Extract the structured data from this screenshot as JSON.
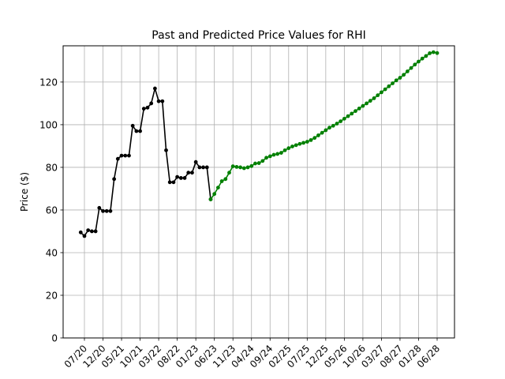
{
  "chart_data": {
    "type": "line",
    "title": "Past and Predicted Price Values for RHI",
    "xlabel": "",
    "ylabel": "Price ($)",
    "ylim": [
      0,
      137
    ],
    "yticks": [
      0,
      20,
      40,
      60,
      80,
      100,
      120
    ],
    "xticks": [
      "07/20",
      "12/20",
      "05/21",
      "10/21",
      "03/22",
      "08/22",
      "01/23",
      "06/23",
      "11/23",
      "04/24",
      "09/24",
      "02/25",
      "07/25",
      "12/25",
      "05/26",
      "10/26",
      "03/27",
      "08/27",
      "01/28",
      "06/28"
    ],
    "grid": true,
    "series": [
      {
        "color": "#000000",
        "x": [
          "2020-06",
          "2020-07",
          "2020-08",
          "2020-09",
          "2020-10",
          "2020-11",
          "2020-12",
          "2021-01",
          "2021-02",
          "2021-03",
          "2021-04",
          "2021-05",
          "2021-06",
          "2021-07",
          "2021-08",
          "2021-09",
          "2021-10",
          "2021-11",
          "2021-12",
          "2022-01",
          "2022-02",
          "2022-03",
          "2022-04",
          "2022-05",
          "2022-06",
          "2022-07",
          "2022-08",
          "2022-09",
          "2022-10",
          "2022-11",
          "2022-12",
          "2023-01",
          "2023-02",
          "2023-03",
          "2023-04",
          "2023-05"
        ],
        "y": [
          49.5,
          47.8,
          50.5,
          50.0,
          50.0,
          61.0,
          59.5,
          59.5,
          59.5,
          74.5,
          84.0,
          85.5,
          85.5,
          85.5,
          99.5,
          97.0,
          97.0,
          107.5,
          108.0,
          110.0,
          117.0,
          111.0,
          111.0,
          88.0,
          73.0,
          73.0,
          75.5,
          75.0,
          75.0,
          77.5,
          77.5,
          82.5,
          80.0,
          80.0,
          80.0,
          65.0
        ]
      },
      {
        "color": "#008000",
        "x": [
          "2023-05",
          "2023-06",
          "2023-07",
          "2023-08",
          "2023-09",
          "2023-10",
          "2023-11",
          "2023-12",
          "2024-01",
          "2024-02",
          "2024-03",
          "2024-04",
          "2024-05",
          "2024-06",
          "2024-07",
          "2024-08",
          "2024-09",
          "2024-10",
          "2024-11",
          "2024-12",
          "2025-01",
          "2025-02",
          "2025-03",
          "2025-04",
          "2025-05",
          "2025-06",
          "2025-07",
          "2025-08",
          "2025-09",
          "2025-10",
          "2025-11",
          "2025-12",
          "2026-01",
          "2026-02",
          "2026-03",
          "2026-04",
          "2026-05",
          "2026-06",
          "2026-07",
          "2026-08",
          "2026-09",
          "2026-10",
          "2026-11",
          "2026-12",
          "2027-01",
          "2027-02",
          "2027-03",
          "2027-04",
          "2027-05",
          "2027-06",
          "2027-07",
          "2027-08",
          "2027-09",
          "2027-10",
          "2027-11",
          "2027-12",
          "2028-01",
          "2028-02",
          "2028-03",
          "2028-04",
          "2028-05",
          "2028-06"
        ],
        "y": [
          65.0,
          67.5,
          70.5,
          73.5,
          74.5,
          77.5,
          80.5,
          80.2,
          80.0,
          79.6,
          80.0,
          80.6,
          81.8,
          82.0,
          83.0,
          84.5,
          85.2,
          85.9,
          86.3,
          86.8,
          88.0,
          89.0,
          89.8,
          90.4,
          91.0,
          91.5,
          92.0,
          92.8,
          93.8,
          95.0,
          96.2,
          97.4,
          98.6,
          99.5,
          100.5,
          101.6,
          102.8,
          104.0,
          105.2,
          106.4,
          107.6,
          108.8,
          110.0,
          111.2,
          112.4,
          113.8,
          115.2,
          116.6,
          118.0,
          119.4,
          120.8,
          122.0,
          123.4,
          125.0,
          126.6,
          128.2,
          129.6,
          131.0,
          132.2,
          133.5,
          134.0,
          133.6
        ]
      }
    ]
  }
}
